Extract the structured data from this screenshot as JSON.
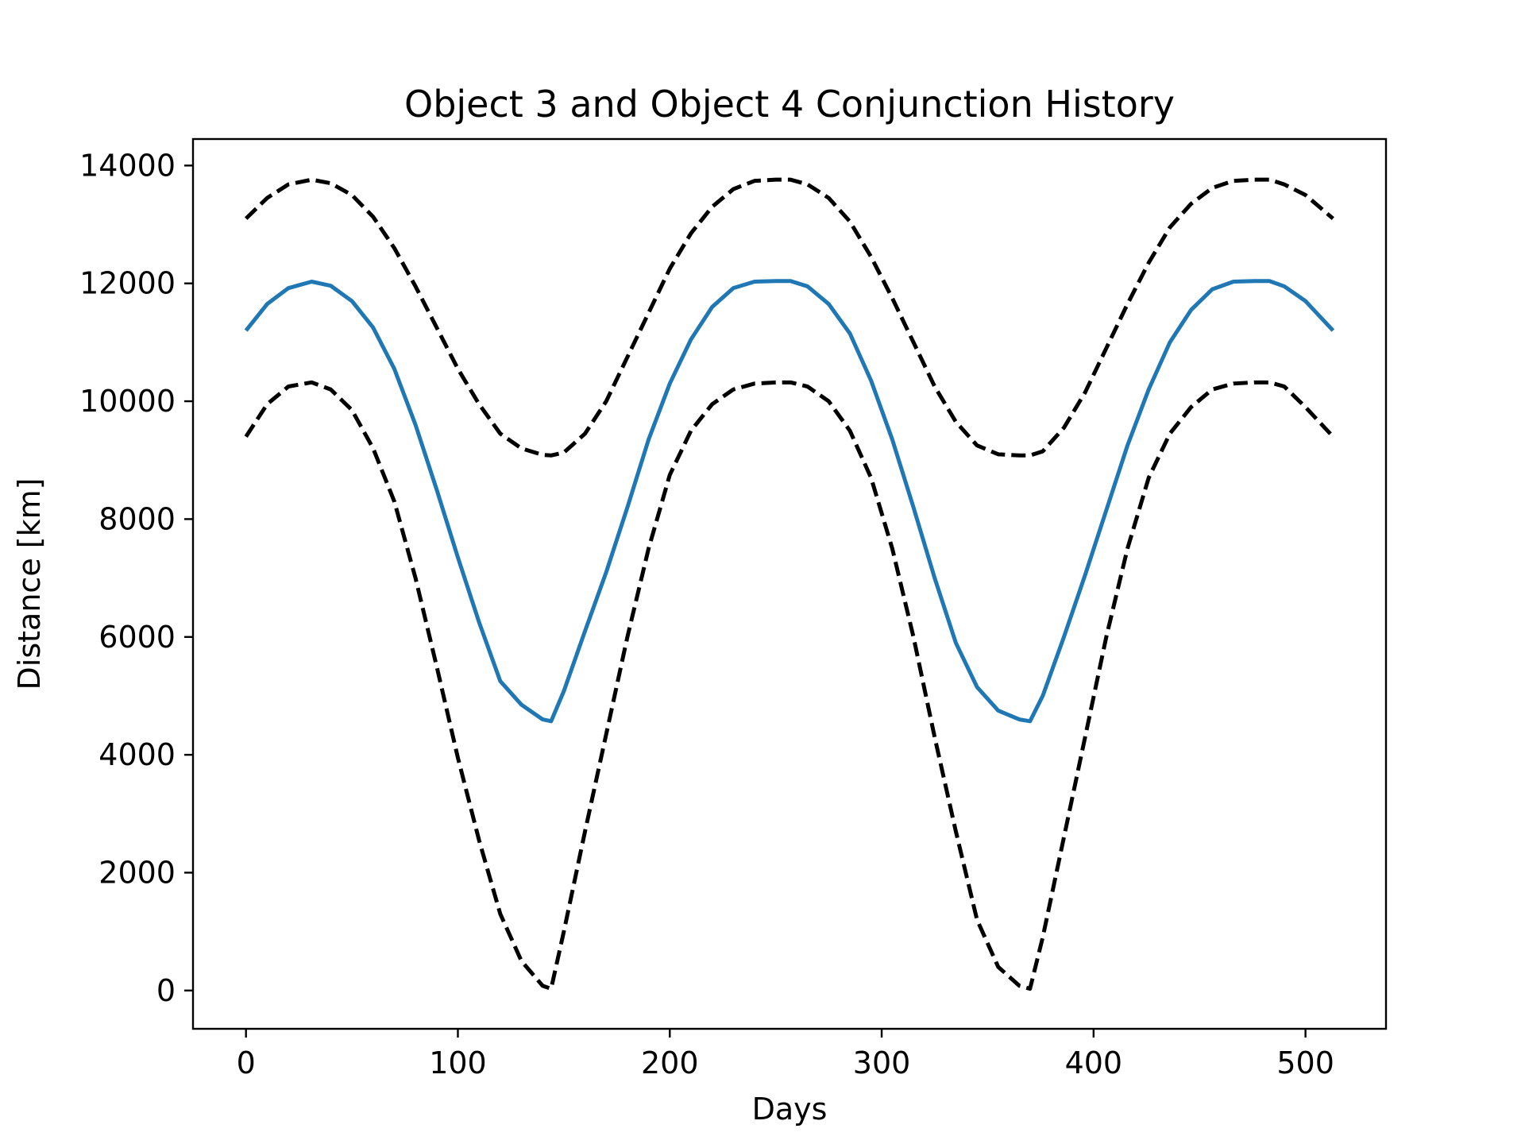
{
  "chart_data": {
    "type": "line",
    "title": "Object 3 and Object 4 Conjunction History",
    "xlabel": "Days",
    "ylabel": "Distance [km]",
    "xlim": [
      -25,
      538
    ],
    "ylim": [
      -650,
      14450
    ],
    "xticks": [
      0,
      100,
      200,
      300,
      400,
      500
    ],
    "yticks": [
      0,
      2000,
      4000,
      6000,
      8000,
      10000,
      12000,
      14000
    ],
    "grid": false,
    "legend": "none",
    "series": [
      {
        "style": "solid",
        "color": "#1f77b4",
        "x": [
          0,
          10,
          20,
          31,
          40,
          50,
          60,
          70,
          80,
          90,
          100,
          110,
          120,
          130,
          140,
          144,
          150,
          160,
          170,
          180,
          190,
          200,
          210,
          220,
          230,
          240,
          250,
          257,
          265,
          275,
          285,
          295,
          305,
          315,
          325,
          335,
          345,
          355,
          365,
          370,
          376,
          386,
          396,
          406,
          416,
          426,
          436,
          446,
          456,
          466,
          476,
          483,
          490,
          500,
          513
        ],
        "y": [
          11200,
          11650,
          11920,
          12030,
          11960,
          11700,
          11250,
          10550,
          9600,
          8500,
          7350,
          6250,
          5250,
          4850,
          4600,
          4570,
          5080,
          6100,
          7100,
          8200,
          9350,
          10300,
          11050,
          11600,
          11920,
          12030,
          12040,
          12040,
          11950,
          11650,
          11150,
          10350,
          9350,
          8200,
          7000,
          5900,
          5150,
          4750,
          4600,
          4570,
          5000,
          6000,
          7050,
          8150,
          9250,
          10200,
          11000,
          11550,
          11900,
          12030,
          12040,
          12040,
          11950,
          11700,
          11200
        ]
      },
      {
        "style": "dashed",
        "color": "#000000",
        "x": [
          0,
          10,
          20,
          31,
          40,
          50,
          60,
          70,
          80,
          90,
          100,
          110,
          120,
          130,
          140,
          144,
          150,
          160,
          170,
          180,
          190,
          200,
          210,
          220,
          230,
          240,
          250,
          257,
          265,
          275,
          285,
          295,
          305,
          315,
          325,
          335,
          345,
          355,
          365,
          370,
          376,
          386,
          396,
          406,
          416,
          426,
          436,
          446,
          456,
          466,
          476,
          483,
          490,
          500,
          513
        ],
        "y": [
          13100,
          13450,
          13680,
          13760,
          13700,
          13500,
          13130,
          12600,
          11950,
          11250,
          10550,
          9950,
          9450,
          9200,
          9090,
          9080,
          9130,
          9450,
          10000,
          10750,
          11500,
          12250,
          12850,
          13300,
          13600,
          13740,
          13760,
          13760,
          13680,
          13450,
          13050,
          12450,
          11750,
          11000,
          10250,
          9650,
          9250,
          9100,
          9080,
          9080,
          9150,
          9550,
          10150,
          10900,
          11650,
          12350,
          12950,
          13350,
          13620,
          13740,
          13760,
          13760,
          13680,
          13500,
          13100
        ]
      },
      {
        "style": "dashed",
        "color": "#000000",
        "x": [
          0,
          10,
          20,
          31,
          40,
          50,
          60,
          70,
          80,
          90,
          100,
          110,
          120,
          130,
          140,
          144,
          150,
          160,
          170,
          180,
          190,
          200,
          210,
          220,
          230,
          240,
          250,
          257,
          265,
          275,
          285,
          295,
          305,
          315,
          325,
          335,
          345,
          355,
          365,
          370,
          376,
          386,
          396,
          406,
          416,
          426,
          436,
          446,
          456,
          466,
          476,
          483,
          490,
          500,
          513
        ],
        "y": [
          9400,
          9950,
          10250,
          10320,
          10200,
          9850,
          9200,
          8300,
          7000,
          5500,
          3950,
          2550,
          1300,
          500,
          80,
          30,
          1000,
          2700,
          4350,
          6000,
          7500,
          8750,
          9500,
          9950,
          10200,
          10300,
          10320,
          10320,
          10250,
          10000,
          9500,
          8700,
          7500,
          6000,
          4300,
          2700,
          1200,
          400,
          80,
          30,
          900,
          2600,
          4300,
          6000,
          7500,
          8700,
          9450,
          9900,
          10200,
          10300,
          10320,
          10320,
          10250,
          9900,
          9400
        ]
      }
    ]
  }
}
